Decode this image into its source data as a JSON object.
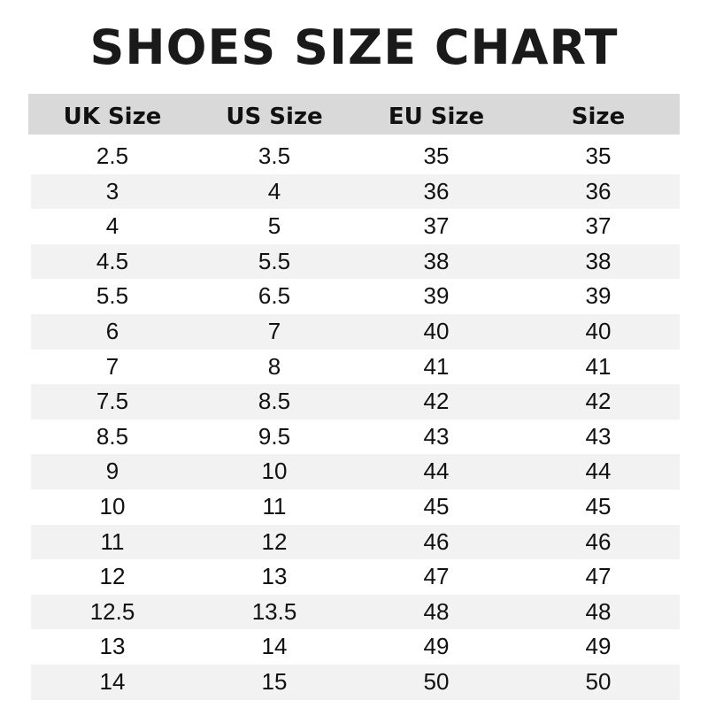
{
  "title": "SHOES SIZE CHART",
  "columns": [
    "UK Size",
    "US Size",
    "EU Size",
    "Size"
  ],
  "rows": [
    [
      "2.5",
      "3.5",
      "35",
      "35"
    ],
    [
      "3",
      "4",
      "36",
      "36"
    ],
    [
      "4",
      "5",
      "37",
      "37"
    ],
    [
      "4.5",
      "5.5",
      "38",
      "38"
    ],
    [
      "5.5",
      "6.5",
      "39",
      "39"
    ],
    [
      "6",
      "7",
      "40",
      "40"
    ],
    [
      "7",
      "8",
      "41",
      "41"
    ],
    [
      "7.5",
      "8.5",
      "42",
      "42"
    ],
    [
      "8.5",
      "9.5",
      "43",
      "43"
    ],
    [
      "9",
      "10",
      "44",
      "44"
    ],
    [
      "10",
      "11",
      "45",
      "45"
    ],
    [
      "11",
      "12",
      "46",
      "46"
    ],
    [
      "12",
      "13",
      "47",
      "47"
    ],
    [
      "12.5",
      "13.5",
      "48",
      "48"
    ],
    [
      "13",
      "14",
      "49",
      "49"
    ],
    [
      "14",
      "15",
      "50",
      "50"
    ]
  ],
  "colors": {
    "header_bg": "#d9d9d9",
    "stripe_bg": "#f2f2f2"
  }
}
